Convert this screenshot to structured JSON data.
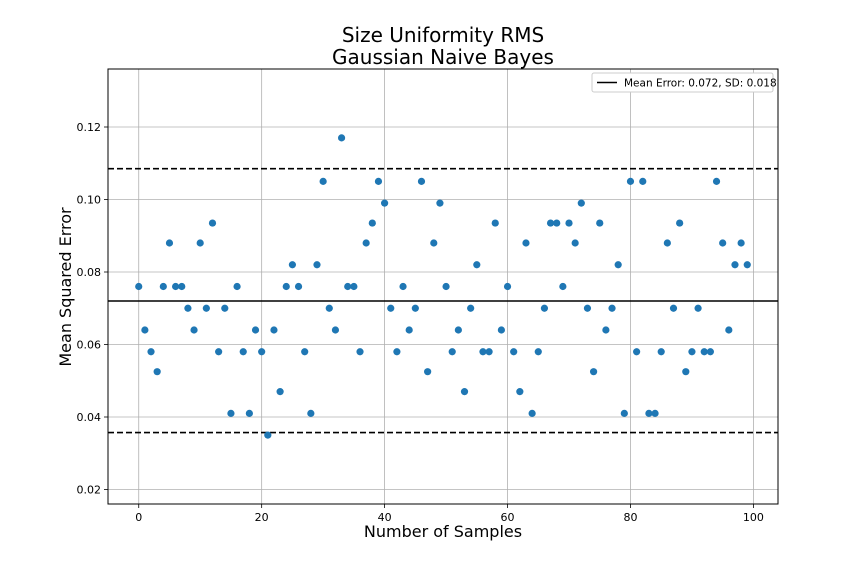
{
  "chart_data": {
    "type": "scatter",
    "title": "Size Uniformity RMS",
    "subtitle": "Gaussian Naive Bayes",
    "xlabel": "Number of Samples",
    "ylabel": "Mean Squared Error",
    "xlim": [
      -5,
      104
    ],
    "ylim": [
      0.016,
      0.136
    ],
    "xticks": [
      0,
      20,
      40,
      60,
      80,
      100
    ],
    "yticks": [
      0.02,
      0.04,
      0.06,
      0.08,
      0.1,
      0.12
    ],
    "xtick_labels": [
      "0",
      "20",
      "40",
      "60",
      "80",
      "100"
    ],
    "ytick_labels": [
      "0.02",
      "0.04",
      "0.06",
      "0.08",
      "0.10",
      "0.12"
    ],
    "grid": true,
    "legend_position": "top-right",
    "point_color": "#1f77b4",
    "mean_line": {
      "y": 0.072,
      "color": "#000000",
      "label": "Mean Error: 0.072, SD: 0.018"
    },
    "sd_lines": {
      "upper": 0.1085,
      "lower": 0.0357,
      "color": "#000000",
      "style": "dashed"
    },
    "x": [
      0,
      1,
      2,
      3,
      4,
      5,
      6,
      7,
      8,
      9,
      10,
      11,
      12,
      13,
      14,
      15,
      16,
      17,
      18,
      19,
      20,
      21,
      22,
      23,
      24,
      25,
      26,
      27,
      28,
      29,
      30,
      31,
      32,
      33,
      34,
      35,
      36,
      37,
      38,
      39,
      40,
      41,
      42,
      43,
      44,
      45,
      46,
      47,
      48,
      49,
      50,
      51,
      52,
      53,
      54,
      55,
      56,
      57,
      58,
      59,
      60,
      61,
      62,
      63,
      64,
      65,
      66,
      67,
      68,
      69,
      70,
      71,
      72,
      73,
      74,
      75,
      76,
      77,
      78,
      79,
      80,
      81,
      82,
      83,
      84,
      85,
      86,
      87,
      88,
      89,
      90,
      91,
      92,
      93,
      94,
      95,
      96,
      97,
      98,
      99
    ],
    "y": [
      0.076,
      0.064,
      0.058,
      0.0525,
      0.076,
      0.088,
      0.076,
      0.076,
      0.07,
      0.064,
      0.088,
      0.07,
      0.0935,
      0.058,
      0.07,
      0.041,
      0.076,
      0.058,
      0.041,
      0.064,
      0.058,
      0.035,
      0.064,
      0.047,
      0.076,
      0.082,
      0.076,
      0.058,
      0.041,
      0.082,
      0.105,
      0.07,
      0.064,
      0.117,
      0.076,
      0.076,
      0.058,
      0.088,
      0.0935,
      0.105,
      0.099,
      0.07,
      0.058,
      0.076,
      0.064,
      0.07,
      0.105,
      0.0525,
      0.088,
      0.099,
      0.076,
      0.058,
      0.064,
      0.047,
      0.07,
      0.082,
      0.058,
      0.058,
      0.0935,
      0.064,
      0.076,
      0.058,
      0.047,
      0.088,
      0.041,
      0.058,
      0.07,
      0.0935,
      0.0935,
      0.076,
      0.0935,
      0.088,
      0.099,
      0.07,
      0.0525,
      0.0935,
      0.064,
      0.07,
      0.082,
      0.041,
      0.105,
      0.058,
      0.105,
      0.041,
      0.041,
      0.058,
      0.088,
      0.07,
      0.0935,
      0.0525,
      0.058,
      0.07,
      0.058,
      0.058,
      0.105,
      0.088,
      0.064,
      0.082,
      0.088,
      0.082
    ]
  }
}
